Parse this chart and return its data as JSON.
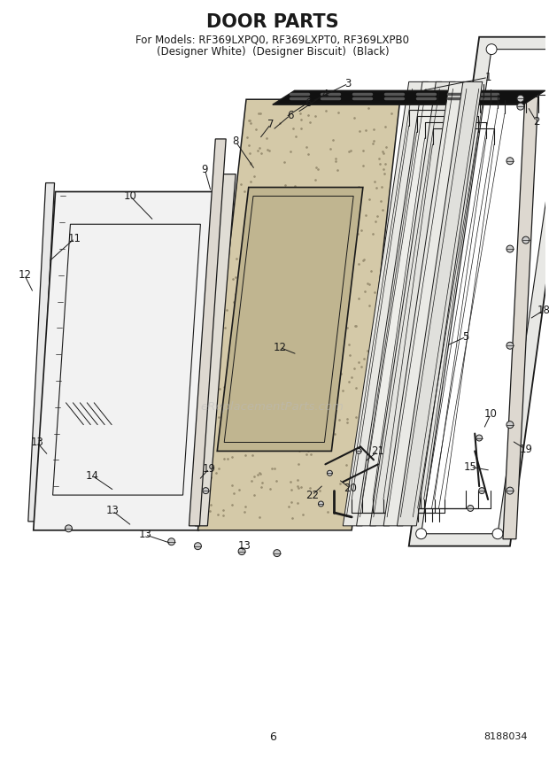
{
  "title": "DOOR PARTS",
  "subtitle_line1": "For Models: RF369LXPQ0, RF369LXPT0, RF369LXPB0",
  "subtitle_line2": "(Designer White)  (Designer Biscuit)  (Black)",
  "page_number": "6",
  "part_number": "8188034",
  "background_color": "#ffffff",
  "title_fontsize": 15,
  "subtitle_fontsize": 8.5,
  "watermark_text": "eReplacementParts.com",
  "watermark_color": "#cccccc",
  "line_color": "#1a1a1a",
  "label_fontsize": 8.5
}
